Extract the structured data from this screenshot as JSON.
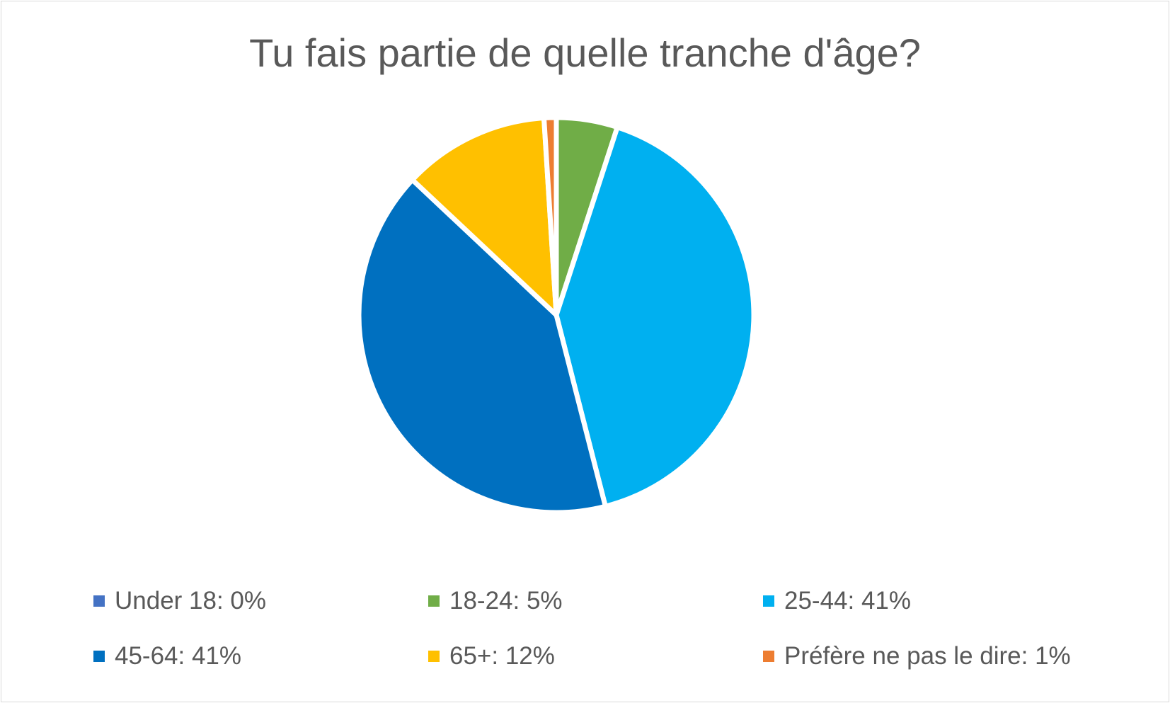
{
  "chart_data": {
    "type": "pie",
    "title": "Tu fais partie de quelle tranche d'âge?",
    "legend_position": "bottom",
    "slices": [
      {
        "label": "Under 18",
        "value": 0,
        "legend_text": "Under 18: 0%",
        "color": "#4472C4"
      },
      {
        "label": "18-24",
        "value": 5,
        "legend_text": "18-24: 5%",
        "color": "#70AD47"
      },
      {
        "label": "25-44",
        "value": 41,
        "legend_text": "25-44: 41%",
        "color": "#00B0F0"
      },
      {
        "label": "45-64",
        "value": 41,
        "legend_text": "45-64: 41%",
        "color": "#0070C0"
      },
      {
        "label": "65+",
        "value": 12,
        "legend_text": "65+: 12%",
        "color": "#FFC000"
      },
      {
        "label": "Préfère ne pas le dire",
        "value": 1,
        "legend_text": "Préfère ne pas le dire: 1%",
        "color": "#ED7D31"
      }
    ]
  }
}
